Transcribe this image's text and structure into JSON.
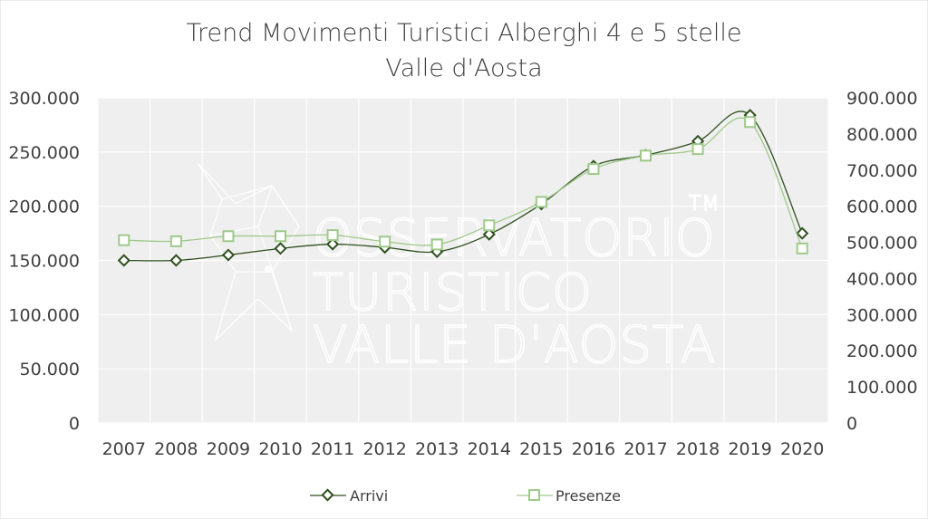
{
  "chart_data": {
    "type": "line",
    "title": "Trend Movimenti Turistici Alberghi 4 e 5 stelle",
    "subtitle": "Valle d'Aosta",
    "categories": [
      "2007",
      "2008",
      "2009",
      "2010",
      "2011",
      "2012",
      "2013",
      "2014",
      "2015",
      "2016",
      "2017",
      "2018",
      "2019",
      "2020"
    ],
    "series": [
      {
        "name": "Arrivi",
        "axis": "left",
        "color": "#2f4f1f",
        "marker": "diamond",
        "values": [
          150000,
          150000,
          155000,
          161000,
          165000,
          162000,
          158000,
          174000,
          202000,
          237000,
          247000,
          260000,
          284000,
          175000
        ]
      },
      {
        "name": "Presenze",
        "axis": "right",
        "color": "#9fc98a",
        "marker": "square",
        "values": [
          506000,
          503000,
          517000,
          517000,
          520000,
          502000,
          494000,
          547000,
          612000,
          703000,
          740000,
          758000,
          833000,
          483000
        ]
      }
    ],
    "y_left": {
      "ylim": [
        0,
        300000
      ],
      "ticks": [
        "0",
        "50.000",
        "100.000",
        "150.000",
        "200.000",
        "250.000",
        "300.000"
      ]
    },
    "y_right": {
      "ylim": [
        0,
        900000
      ],
      "ticks": [
        "0",
        "100.000",
        "200.000",
        "300.000",
        "400.000",
        "500.000",
        "600.000",
        "700.000",
        "800.000",
        "900.000"
      ]
    },
    "grid": true,
    "legend": "bottom",
    "plot_background": "#efefef",
    "grid_color": "#ffffff",
    "watermark": [
      "OSSERVATORIO",
      "TURISTICO",
      "VALLE D'AOSTA",
      "TM"
    ]
  }
}
